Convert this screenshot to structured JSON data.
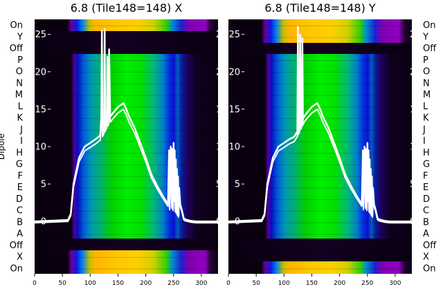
{
  "chart_data": [
    {
      "type": "heatmap",
      "title": "6.8 (Tile148=148) X",
      "xlabel": "",
      "ylabel": "Dipole",
      "xlim": [
        0,
        330
      ],
      "xticks": [
        0,
        50,
        100,
        150,
        200,
        250,
        300
      ],
      "row_labels": [
        "On",
        "Y",
        "Off",
        "P",
        "O",
        "N",
        "M",
        "L",
        "K",
        "J",
        "I",
        "H",
        "G",
        "F",
        "E",
        "D",
        "C",
        "B",
        "A",
        "Off",
        "X",
        "On"
      ],
      "overlay": {
        "type": "line",
        "color": "#ffffff",
        "ylim": [
          -7,
          27
        ],
        "yticks": [
          0,
          5,
          10,
          15,
          20,
          25
        ],
        "x": [
          0,
          60,
          65,
          70,
          80,
          90,
          100,
          110,
          118,
          120,
          121,
          122,
          124,
          125,
          126,
          127,
          128,
          130,
          131,
          132,
          133,
          134,
          136,
          140,
          150,
          160,
          165,
          170,
          180,
          190,
          200,
          210,
          220,
          230,
          240,
          242,
          243,
          245,
          247,
          248,
          249,
          250,
          251,
          252,
          253,
          254,
          255,
          256,
          257,
          258,
          259,
          260,
          262,
          265,
          268,
          270,
          280,
          290,
          300,
          320,
          330
        ],
        "y": [
          0,
          0.2,
          1,
          5,
          8.5,
          10,
          10.5,
          11,
          11.5,
          14,
          25.5,
          12,
          12.3,
          12.5,
          25.7,
          12.7,
          13,
          13.2,
          22,
          13.5,
          13.6,
          23,
          14,
          14.4,
          15.3,
          15.8,
          15,
          14,
          12.5,
          10.5,
          8.5,
          6.3,
          4.8,
          3.5,
          2.3,
          9.5,
          1.8,
          10,
          2,
          9.7,
          1.7,
          10.5,
          3,
          9.5,
          1.5,
          8.3,
          1.3,
          7,
          1,
          6,
          0.8,
          4.5,
          2.3,
          1.5,
          0.5,
          0.3,
          0.1,
          0,
          0,
          0,
          0
        ]
      }
    },
    {
      "type": "heatmap",
      "title": "6.8 (Tile148=148) Y",
      "xlabel": "",
      "ylabel": "",
      "xlim": [
        0,
        330
      ],
      "xticks": [
        0,
        50,
        100,
        150,
        200,
        250,
        300
      ],
      "row_labels": [
        "On",
        "Y",
        "Off",
        "P",
        "O",
        "N",
        "M",
        "L",
        "K",
        "J",
        "I",
        "H",
        "G",
        "F",
        "E",
        "D",
        "C",
        "B",
        "A",
        "Off",
        "X",
        "On"
      ],
      "overlay": {
        "type": "line",
        "color": "#ffffff",
        "ylim": [
          -7,
          27
        ],
        "yticks": [
          0,
          5,
          10,
          15,
          20,
          25
        ],
        "x": [
          0,
          60,
          65,
          70,
          80,
          90,
          100,
          110,
          118,
          120,
          122,
          124,
          125,
          126,
          127,
          128,
          129,
          130,
          131,
          132,
          133,
          134,
          136,
          140,
          150,
          160,
          165,
          170,
          180,
          190,
          200,
          210,
          220,
          230,
          240,
          242,
          243,
          245,
          247,
          248,
          249,
          250,
          251,
          252,
          253,
          254,
          255,
          256,
          257,
          258,
          259,
          260,
          262,
          265,
          268,
          270,
          280,
          290,
          300,
          320,
          330
        ],
        "y": [
          0,
          0.2,
          1,
          5,
          8.5,
          10,
          10.5,
          11,
          11.3,
          11.5,
          11.8,
          12,
          26,
          12.3,
          12.5,
          12.7,
          25,
          13,
          13.2,
          13.4,
          24.5,
          13.6,
          14,
          14.4,
          15.3,
          15.8,
          15,
          14,
          12.5,
          10.5,
          8.5,
          6.3,
          4.8,
          3.5,
          2.3,
          9.5,
          1.8,
          10,
          2,
          9.7,
          1.7,
          10.5,
          3,
          9.5,
          1.5,
          8.3,
          1.3,
          7,
          1,
          6,
          0.8,
          4.5,
          2.3,
          1.5,
          0.5,
          0.3,
          0.1,
          0,
          0,
          0,
          0
        ]
      }
    }
  ]
}
